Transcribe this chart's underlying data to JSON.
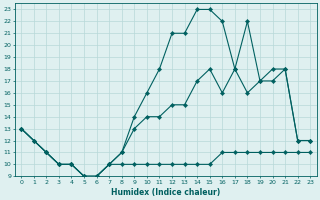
{
  "bg_color": "#dff0f0",
  "grid_color": "#b8d8d8",
  "line_color": "#006060",
  "xlabel": "Humidex (Indice chaleur)",
  "xlim": [
    -0.5,
    23.5
  ],
  "ylim": [
    9,
    23.5
  ],
  "xticks": [
    0,
    1,
    2,
    3,
    4,
    5,
    6,
    7,
    8,
    9,
    10,
    11,
    12,
    13,
    14,
    15,
    16,
    17,
    18,
    19,
    20,
    21,
    22,
    23
  ],
  "yticks": [
    9,
    10,
    11,
    12,
    13,
    14,
    15,
    16,
    17,
    18,
    19,
    20,
    21,
    22,
    23
  ],
  "line_main_x": [
    0,
    1,
    2,
    3,
    4,
    5,
    6,
    7,
    8,
    9,
    10,
    11,
    12,
    13,
    14,
    15,
    16,
    17,
    18,
    19,
    20,
    21,
    22,
    23
  ],
  "line_main_y": [
    13,
    12,
    11,
    10,
    10,
    9,
    9,
    10,
    11,
    14,
    16,
    18,
    21,
    21,
    23,
    23,
    22,
    18,
    16,
    17,
    18,
    18,
    12,
    12
  ],
  "line_diag_x": [
    0,
    2,
    3,
    4,
    5,
    6,
    7,
    8,
    9,
    10,
    11,
    12,
    13,
    14,
    15,
    16,
    17,
    18,
    19,
    20,
    21,
    22,
    23
  ],
  "line_diag_y": [
    13,
    11,
    10,
    10,
    9,
    9,
    10,
    11,
    13,
    14,
    14,
    15,
    15,
    17,
    18,
    16,
    18,
    22,
    17,
    17,
    18,
    12,
    12
  ],
  "line_flat_x": [
    0,
    1,
    2,
    3,
    4,
    5,
    6,
    7,
    8,
    9,
    10,
    11,
    12,
    13,
    14,
    15,
    16,
    17,
    18,
    19,
    20,
    21,
    22,
    23
  ],
  "line_flat_y": [
    13,
    12,
    11,
    10,
    10,
    9,
    9,
    10,
    10,
    10,
    10,
    10,
    10,
    10,
    10,
    10,
    11,
    11,
    11,
    11,
    11,
    11,
    11,
    11
  ]
}
